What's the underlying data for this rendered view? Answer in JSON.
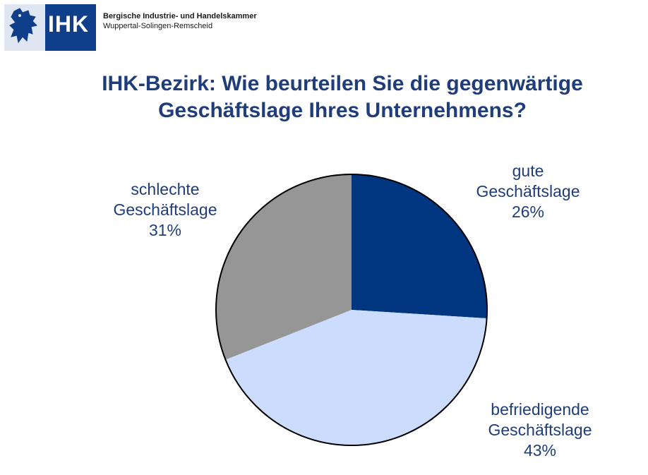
{
  "header": {
    "logo_text": "IHK",
    "org_name": "Bergische Industrie- und Handelskammer",
    "org_city": "Wuppertal-Solingen-Remscheid"
  },
  "chart_data": {
    "type": "pie",
    "title_lines": [
      "IHK-Bezirk: Wie beurteilen Sie die gegenwärtige",
      "Geschäftslage Ihres Unternehmens?"
    ],
    "slices": [
      {
        "label_lines": [
          "gute",
          "Geschäftslage",
          "26%"
        ],
        "value": 26,
        "color": "#003580"
      },
      {
        "label_lines": [
          "befriedigende",
          "Geschäftslage",
          "43%"
        ],
        "value": 43,
        "color": "#ccdcff"
      },
      {
        "label_lines": [
          "schlechte",
          "Geschäftslage",
          "31%"
        ],
        "value": 31,
        "color": "#969696"
      }
    ],
    "start_angle": "12 o'clock",
    "direction": "clockwise",
    "outline_color": "#000000"
  }
}
